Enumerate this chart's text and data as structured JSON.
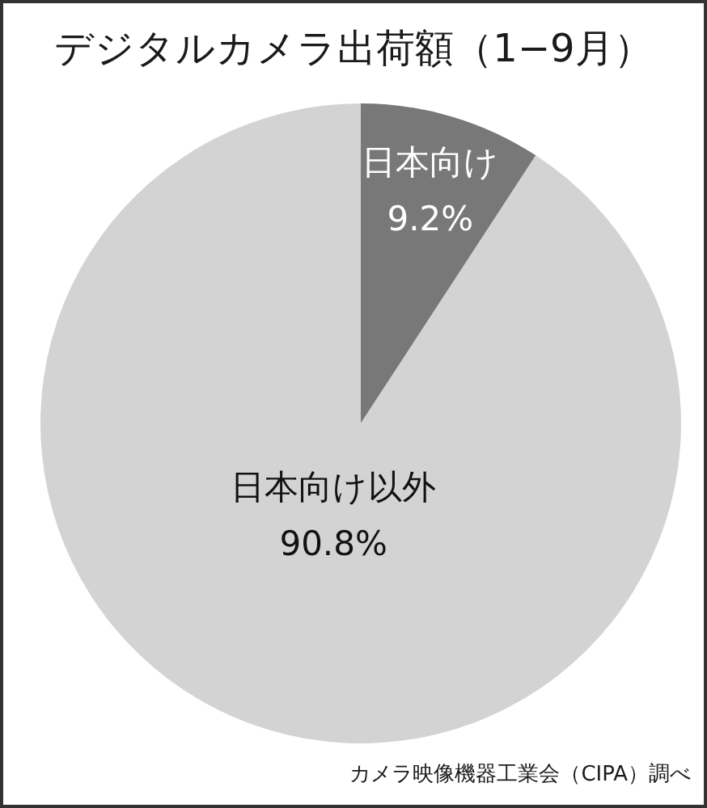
{
  "chart_data": {
    "type": "pie",
    "title": "デジタルカメラ出荷額（1−9月）",
    "categories": [
      "日本向け",
      "日本向け以外"
    ],
    "values": [
      9.2,
      90.8
    ],
    "colors": [
      "#787878",
      "#d3d3d3"
    ],
    "value_labels": [
      "9.2%",
      "90.8%"
    ],
    "annotations": [
      "カメラ映像機器工業会（CIPA）調べ"
    ]
  }
}
